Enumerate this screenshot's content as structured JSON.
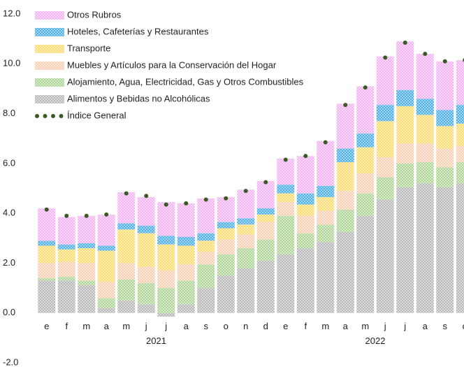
{
  "chart_data": {
    "type": "stacked_bar_line",
    "categories": [
      "e",
      "f",
      "m",
      "a",
      "m",
      "j",
      "j",
      "a",
      "s",
      "o",
      "n",
      "d",
      "e",
      "f",
      "m",
      "a",
      "m",
      "j",
      "j",
      "a",
      "s",
      "o"
    ],
    "x_groups": [
      {
        "label": "2021",
        "start": 0,
        "end": 11
      },
      {
        "label": "2022",
        "start": 12,
        "end": 21
      }
    ],
    "ylim": [
      -2,
      12
    ],
    "yticks": [
      {
        "value": -2,
        "label": "-2.0"
      },
      {
        "value": 0,
        "label": "0.0"
      },
      {
        "value": 2,
        "label": "2.0"
      },
      {
        "value": 4,
        "label": "4.0"
      },
      {
        "value": 6,
        "label": "6.0"
      },
      {
        "value": 8,
        "label": "8.0"
      },
      {
        "value": 10,
        "label": "10.0"
      },
      {
        "value": 12,
        "label": "12.0"
      }
    ],
    "grid": false,
    "legend": "upper left",
    "series": [
      {
        "name": "Alimentos y Bebidas no Alcohólicas",
        "color": "#b3b3b3",
        "values": [
          1.3,
          1.3,
          1.1,
          0.2,
          0.5,
          0.35,
          -0.15,
          0.35,
          1.0,
          1.5,
          1.8,
          2.1,
          2.35,
          2.6,
          2.85,
          3.25,
          3.9,
          4.55,
          5.05,
          5.2,
          5.05,
          5.2
        ]
      },
      {
        "name": "Alojamiento, Agua, Electricidad, Gas y Otros Combustibles",
        "color": "#a9d18e",
        "values": [
          0.1,
          0.15,
          0.2,
          0.4,
          0.85,
          0.85,
          1.0,
          0.95,
          0.95,
          0.85,
          0.8,
          0.85,
          1.55,
          0.6,
          0.7,
          0.9,
          0.9,
          0.9,
          0.95,
          0.85,
          0.8,
          0.85
        ]
      },
      {
        "name": "Muebles y Artículos para la Conservación del Hogar",
        "color": "#f8cbad",
        "values": [
          0.6,
          0.6,
          0.7,
          0.65,
          0.65,
          0.65,
          0.7,
          0.65,
          0.5,
          0.6,
          0.55,
          0.7,
          0.55,
          0.7,
          0.55,
          0.75,
          0.8,
          0.8,
          0.8,
          0.75,
          0.75,
          0.65
        ]
      },
      {
        "name": "Transporte",
        "color": "#ffd966",
        "values": [
          0.7,
          0.5,
          0.6,
          1.25,
          1.35,
          1.35,
          1.05,
          0.75,
          0.45,
          0.45,
          0.4,
          0.3,
          0.35,
          0.45,
          0.55,
          1.15,
          1.05,
          1.45,
          1.5,
          1.15,
          0.9,
          0.9
        ]
      },
      {
        "name": "Hoteles, Cafeterías y Restaurantes",
        "color": "#3fa9e6",
        "values": [
          0.2,
          0.2,
          0.2,
          0.2,
          0.25,
          0.3,
          0.35,
          0.35,
          0.3,
          0.25,
          0.25,
          0.25,
          0.35,
          0.45,
          0.45,
          0.55,
          0.55,
          0.65,
          0.65,
          0.65,
          0.65,
          0.75
        ]
      },
      {
        "name": "Otros Rubros",
        "color": "#f2aef2",
        "values": [
          1.3,
          1.1,
          1.1,
          1.25,
          1.25,
          1.15,
          1.35,
          1.35,
          1.4,
          1.0,
          1.15,
          1.1,
          1.05,
          1.5,
          1.8,
          1.8,
          1.9,
          1.95,
          1.95,
          1.8,
          1.95,
          1.8
        ]
      }
    ],
    "line": {
      "name": "Índice General",
      "color": "#3a5a22",
      "values": [
        4.15,
        3.9,
        3.9,
        3.95,
        4.8,
        4.7,
        4.35,
        4.4,
        4.55,
        4.6,
        4.9,
        5.25,
        6.15,
        6.3,
        6.85,
        8.35,
        9.05,
        10.25,
        10.85,
        10.4,
        10.1,
        10.15
      ]
    }
  }
}
